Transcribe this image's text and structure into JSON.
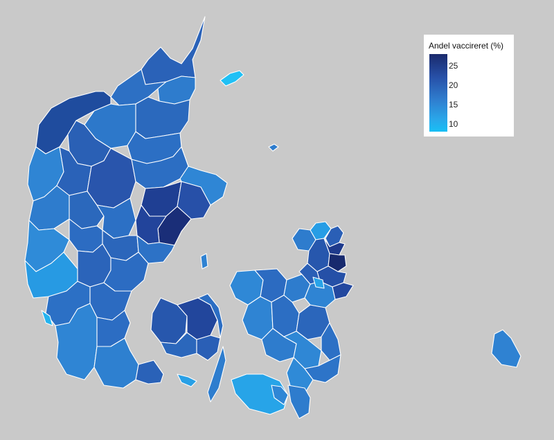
{
  "legend": {
    "title": "Andel vaccireret (%)",
    "ticks": [
      "25",
      "20",
      "15",
      "10"
    ],
    "min": 8,
    "max": 28
  },
  "colors": {
    "background": "#c9c9c9",
    "border": "#ffffff",
    "scale_high": "#1a2a6c",
    "scale_low": "#18bff5"
  },
  "chart_data": {
    "type": "choropleth",
    "region": "Denmark municipalities",
    "legend_title": "Andel vaccireret (%)",
    "scale_ticks": [
      25,
      20,
      15,
      10
    ],
    "scale_range": [
      8,
      28
    ]
  }
}
